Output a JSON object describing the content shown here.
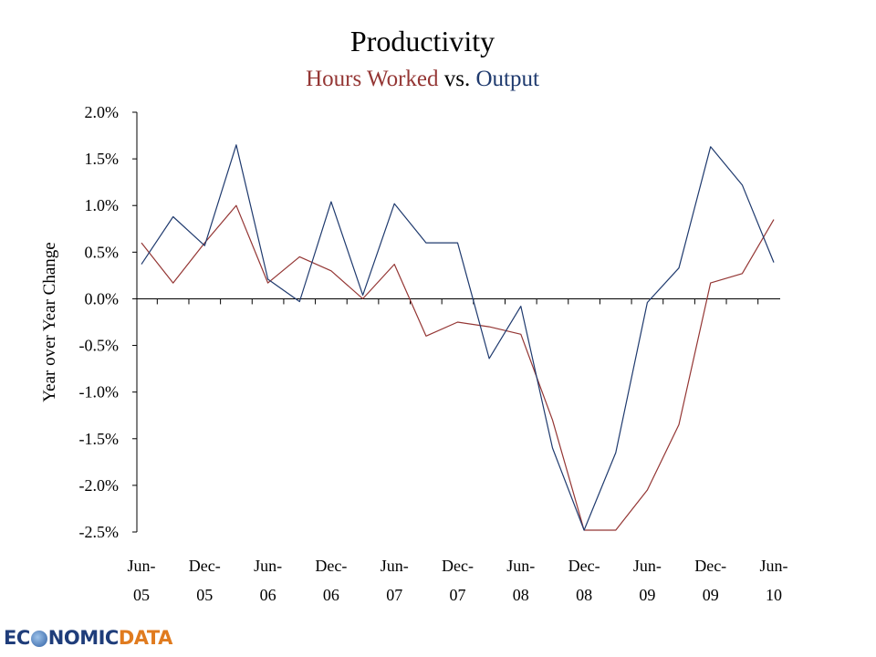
{
  "chart_data": {
    "type": "line",
    "title": "Productivity",
    "subtitle_parts": {
      "hours": "Hours Worked",
      "vs": " vs. ",
      "output": "Output"
    },
    "ylabel": "Year over Year Change",
    "ylim": [
      -2.5,
      2.0
    ],
    "yticks": [
      "2.0%",
      "1.5%",
      "1.0%",
      "0.5%",
      "0.0%",
      "-0.5%",
      "-1.0%",
      "-1.5%",
      "-2.0%",
      "-2.5%"
    ],
    "x_tick_labels": [
      [
        "Jun-",
        "05"
      ],
      [
        "Dec-",
        "05"
      ],
      [
        "Jun-",
        "06"
      ],
      [
        "Dec-",
        "06"
      ],
      [
        "Jun-",
        "07"
      ],
      [
        "Dec-",
        "07"
      ],
      [
        "Jun-",
        "08"
      ],
      [
        "Dec-",
        "08"
      ],
      [
        "Jun-",
        "09"
      ],
      [
        "Dec-",
        "09"
      ],
      [
        "Jun-",
        "10"
      ]
    ],
    "x": [
      "Jun-05",
      "Sep-05",
      "Dec-05",
      "Mar-06",
      "Jun-06",
      "Sep-06",
      "Dec-06",
      "Mar-07",
      "Jun-07",
      "Sep-07",
      "Dec-07",
      "Mar-08",
      "Jun-08",
      "Sep-08",
      "Dec-08",
      "Mar-09",
      "Jun-09",
      "Sep-09",
      "Dec-09",
      "Mar-10",
      "Jun-10"
    ],
    "series": [
      {
        "name": "Hours Worked",
        "color": "#943634",
        "values": [
          0.6,
          0.17,
          0.6,
          1.0,
          0.17,
          0.45,
          0.3,
          0.0,
          0.37,
          -0.4,
          -0.25,
          -0.3,
          -0.38,
          -1.3,
          -2.48,
          -2.48,
          -2.05,
          -1.35,
          0.17,
          0.27,
          0.85
        ]
      },
      {
        "name": "Output",
        "color": "#1f3a6e",
        "values": [
          0.37,
          0.88,
          0.57,
          1.65,
          0.21,
          -0.03,
          1.04,
          0.04,
          1.02,
          0.6,
          0.6,
          -0.64,
          -0.08,
          -1.6,
          -2.48,
          -1.65,
          -0.04,
          0.33,
          1.63,
          1.22,
          0.39
        ]
      }
    ],
    "grid": false
  },
  "logo": {
    "ec": "EC",
    "rest": "NOMIC",
    "data": "DATA"
  }
}
